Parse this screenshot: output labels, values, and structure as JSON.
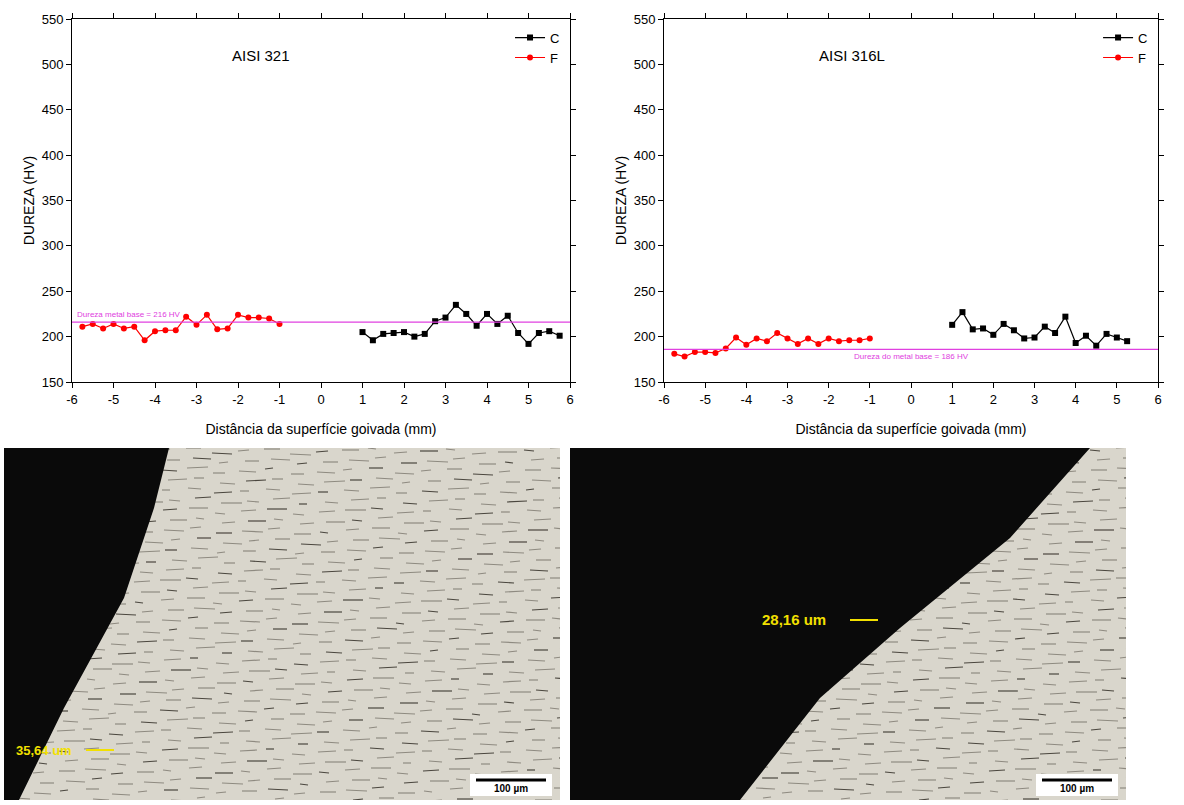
{
  "chart_data": [
    {
      "type": "line",
      "title": "AISI 321",
      "x_label": "Distância da superfície goivada (mm)",
      "y_label": "DUREZA (HV)",
      "xlim": [
        -6,
        6
      ],
      "xticks": [
        -6,
        -5,
        -4,
        -3,
        -2,
        -1,
        0,
        1,
        2,
        3,
        4,
        5,
        6
      ],
      "ylim": [
        150,
        550
      ],
      "yticks": [
        150,
        200,
        250,
        300,
        350,
        400,
        450,
        500,
        550
      ],
      "grid": false,
      "legend": "top right",
      "reference": {
        "value": 216,
        "label": "Dureza metal base = 216 HV",
        "color": "#e040e0"
      },
      "series": [
        {
          "name": "C",
          "color": "#000000",
          "marker": "square",
          "line_style": "solid",
          "x": [
            1,
            1.25,
            1.5,
            1.75,
            2,
            2.25,
            2.5,
            2.75,
            3,
            3.25,
            3.5,
            3.75,
            4,
            4.25,
            4.5,
            4.75,
            5,
            5.25,
            5.5,
            5.75
          ],
          "values": [
            205,
            196,
            203,
            204,
            205,
            200,
            203,
            217,
            221,
            235,
            225,
            212,
            225,
            214,
            223,
            204,
            192,
            204,
            206,
            201
          ]
        },
        {
          "name": "F",
          "color": "#ff0000",
          "marker": "circle",
          "line_style": "solid",
          "x": [
            -5.75,
            -5.5,
            -5.25,
            -5,
            -4.75,
            -4.5,
            -4.25,
            -4,
            -3.75,
            -3.5,
            -3.25,
            -3,
            -2.75,
            -2.5,
            -2.25,
            -2,
            -1.75,
            -1.5,
            -1.25,
            -1
          ],
          "values": [
            211,
            214,
            209,
            214,
            209,
            211,
            196,
            206,
            207,
            207,
            222,
            213,
            224,
            208,
            209,
            224,
            221,
            221,
            220,
            214
          ]
        }
      ]
    },
    {
      "type": "line",
      "title": "AISI 316L",
      "x_label": "Distância da superfície goivada (mm)",
      "y_label": "DUREZA (HV)",
      "xlim": [
        -6,
        6
      ],
      "xticks": [
        -6,
        -5,
        -4,
        -3,
        -2,
        -1,
        0,
        1,
        2,
        3,
        4,
        5,
        6
      ],
      "ylim": [
        150,
        550
      ],
      "yticks": [
        150,
        200,
        250,
        300,
        350,
        400,
        450,
        500,
        550
      ],
      "grid": false,
      "legend": "top right",
      "reference": {
        "value": 186,
        "label": "Dureza do metal base = 186 HV",
        "color": "#e040e0"
      },
      "series": [
        {
          "name": "C",
          "color": "#000000",
          "marker": "square",
          "line_style": "solid",
          "x": [
            1,
            1.25,
            1.5,
            1.75,
            2,
            2.25,
            2.5,
            2.75,
            3,
            3.25,
            3.5,
            3.75,
            4,
            4.25,
            4.5,
            4.75,
            5,
            5.25
          ],
          "values": [
            213,
            227,
            208,
            209,
            202,
            214,
            207,
            198,
            199,
            211,
            204,
            222,
            193,
            201,
            190,
            203,
            199,
            195
          ]
        },
        {
          "name": "F",
          "color": "#ff0000",
          "marker": "circle",
          "line_style": "solid",
          "x": [
            -5.75,
            -5.5,
            -5.25,
            -5,
            -4.75,
            -4.5,
            -4.25,
            -4,
            -3.75,
            -3.5,
            -3.25,
            -3,
            -2.75,
            -2.5,
            -2.25,
            -2,
            -1.75,
            -1.5,
            -1.25,
            -1
          ],
          "values": [
            181,
            178,
            183,
            183,
            182,
            187,
            199,
            191,
            198,
            195,
            204,
            198,
            192,
            198,
            192,
            198,
            195,
            196,
            196,
            198
          ]
        }
      ]
    }
  ],
  "micrographs": [
    {
      "measurement": "35,64 um",
      "scale_bar": "100 µm"
    },
    {
      "measurement": "28,16 um",
      "scale_bar": "100 µm"
    }
  ]
}
